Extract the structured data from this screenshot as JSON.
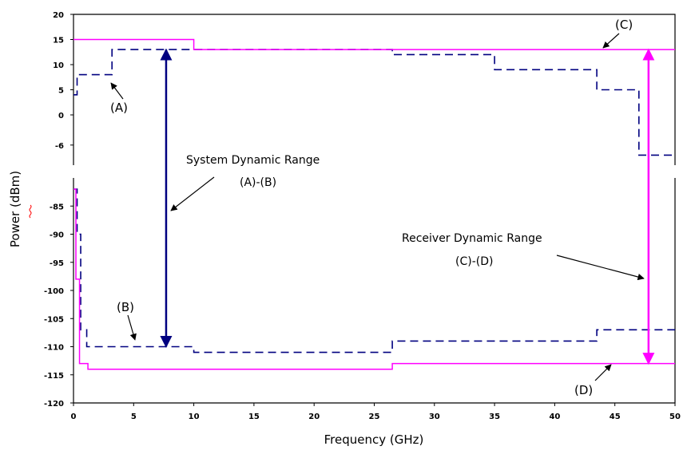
{
  "chart_data": {
    "type": "line",
    "title": "",
    "xlabel": "Frequency (GHz)",
    "ylabel": "Power (dBm)",
    "xlim": [
      0,
      50
    ],
    "x_ticks": [
      0,
      5,
      10,
      15,
      20,
      25,
      30,
      35,
      40,
      45,
      50
    ],
    "broken_y_axis": true,
    "upper_ylim": [
      -10,
      20
    ],
    "upper_y_ticks": [
      20,
      15,
      10,
      5,
      0,
      -6
    ],
    "lower_ylim": [
      -120,
      -80
    ],
    "lower_y_ticks": [
      -85,
      -90,
      -95,
      -100,
      -105,
      -110,
      -115,
      -120
    ],
    "grid": false,
    "legend": "none",
    "series": [
      {
        "label": "(A)",
        "style": "dashed",
        "color": "#000080",
        "x": [
          0,
          0.3,
          0.3,
          3.2,
          3.2,
          26.5,
          26.5,
          35,
          35,
          43.5,
          43.5,
          47,
          47,
          50
        ],
        "y": [
          4,
          4,
          8,
          8,
          13,
          13,
          12,
          12,
          9,
          9,
          5,
          5,
          -8,
          -8
        ]
      },
      {
        "label": "(B)",
        "style": "dashed",
        "color": "#000080",
        "x": [
          0,
          0.3,
          0.3,
          0.6,
          0.6,
          1.1,
          1.1,
          10,
          10,
          26.5,
          26.5,
          43.5,
          43.5,
          50
        ],
        "y": [
          -82,
          -82,
          -90,
          -90,
          -107,
          -107,
          -110,
          -110,
          -111,
          -111,
          -109,
          -109,
          -107,
          -107
        ]
      },
      {
        "label": "(C)",
        "style": "solid",
        "color": "#ff00ff",
        "x": [
          0,
          10,
          10,
          50
        ],
        "y": [
          15,
          15,
          13,
          13
        ]
      },
      {
        "label": "(D)",
        "style": "solid",
        "color": "#ff00ff",
        "x": [
          0,
          0.2,
          0.2,
          0.5,
          0.5,
          1.2,
          1.2,
          26.5,
          26.5,
          50
        ],
        "y": [
          -82,
          -82,
          -98,
          -98,
          -113,
          -113,
          -114,
          -114,
          -113,
          -113
        ]
      }
    ],
    "annotations": {
      "a_label": "(A)",
      "b_label": "(B)",
      "c_label": "(C)",
      "d_label": "(D)",
      "system_range_line1": "System Dynamic Range",
      "system_range_line2": "(A)-(B)",
      "receiver_range_line1": "Receiver Dynamic Range",
      "receiver_range_line2": "(C)-(D)"
    },
    "range_arrows": [
      {
        "name": "system",
        "x": 7.7,
        "y_top": 13,
        "y_bottom": -110,
        "color": "#000080"
      },
      {
        "name": "receiver",
        "x": 47.8,
        "y_top": 13,
        "y_bottom": -113,
        "color": "#ff00ff"
      }
    ]
  }
}
